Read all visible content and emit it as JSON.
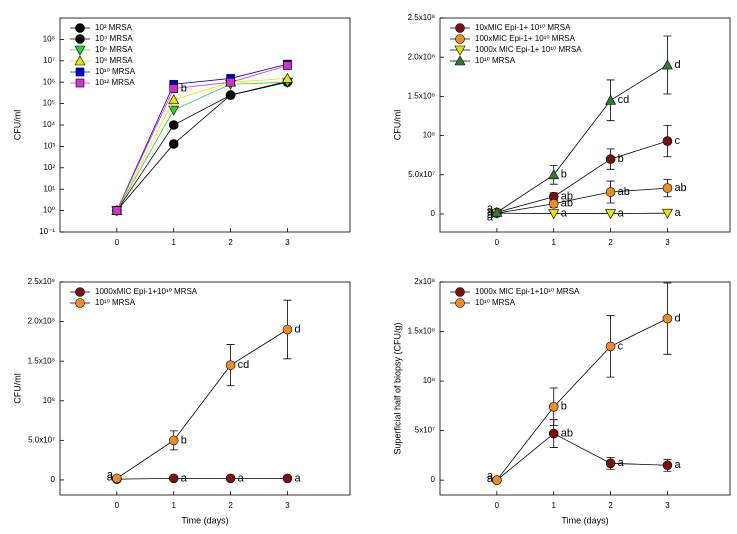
{
  "chart_data": [
    {
      "type": "line",
      "yscale": "log",
      "ylabel": "CFU/ml",
      "legend": "upper left",
      "x": [
        0,
        1,
        2,
        3
      ],
      "xlim": [
        -1,
        4.1
      ],
      "xticks": [
        0,
        1,
        2,
        3
      ],
      "ylim": [
        0.1,
        1000000000
      ],
      "yticks": [
        {
          "value": 0.1,
          "label": "10⁻¹"
        },
        {
          "value": 1,
          "label": "10⁰"
        },
        {
          "value": 10,
          "label": "10¹"
        },
        {
          "value": 100,
          "label": "10²"
        },
        {
          "value": 1000,
          "label": "10³"
        },
        {
          "value": 10000,
          "label": "10⁴"
        },
        {
          "value": 100000,
          "label": "10⁵"
        },
        {
          "value": 1000000,
          "label": "10⁶"
        },
        {
          "value": 10000000,
          "label": "10⁷"
        },
        {
          "value": 100000000,
          "label": "10⁸"
        }
      ],
      "series": [
        {
          "name": "10² MRSA",
          "color": "#000000",
          "marker": "circle",
          "values": [
            1,
            1300,
            250000,
            1100000
          ]
        },
        {
          "name": "10⁴ MRSA",
          "color": "#000000",
          "marker": "circle",
          "values": [
            1,
            10000,
            250000,
            1000000
          ]
        },
        {
          "name": "10⁶ MRSA",
          "color": "#33cc33",
          "marker": "tri-down",
          "values": [
            1,
            50000,
            800000,
            1000000
          ]
        },
        {
          "name": "10⁸ MRSA",
          "color": "#e6e600",
          "marker": "tri-up",
          "values": [
            1,
            150000,
            1000000,
            1500000
          ]
        },
        {
          "name": "10¹⁰ MRSA",
          "color": "#0000cc",
          "marker": "square",
          "values": [
            1,
            800000,
            1500000,
            7000000
          ]
        },
        {
          "name": "10¹² MRSA",
          "color": "#cc33cc",
          "marker": "square",
          "values": [
            1,
            500000,
            1000000,
            6000000
          ],
          "annotations": [
            null,
            "b",
            null,
            null
          ]
        }
      ]
    },
    {
      "type": "line",
      "ylabel": "CFU/ml",
      "legend": "upper left",
      "x": [
        0,
        1,
        2,
        3
      ],
      "xlim": [
        -1,
        4.1
      ],
      "xticks": [
        0,
        1,
        2,
        3
      ],
      "ylim": [
        -23000000,
        250000000
      ],
      "yticks": [
        0,
        {
          "value": 50000000,
          "label": "5.0x10⁷"
        },
        {
          "value": 100000000,
          "label": "10⁸"
        },
        {
          "value": 150000000,
          "label": "1.5x10⁸"
        },
        {
          "value": 200000000,
          "label": "2.0x10⁸"
        },
        {
          "value": 250000000,
          "label": "2.5x10⁸"
        }
      ],
      "series": [
        {
          "name": "10xMIC Epi-1+ 10¹⁰ MRSA",
          "color": "#7b1010",
          "marker": "circle",
          "values": [
            2000000,
            22000000,
            70000000,
            93000000
          ],
          "errors": [
            0,
            5000000,
            13000000,
            20000000
          ],
          "annotations": [
            "a",
            "ab",
            "b",
            "c"
          ]
        },
        {
          "name": "100xMIC Epi-1+ 10¹⁰ MRSA",
          "color": "#f08c28",
          "marker": "circle",
          "values": [
            1000000,
            13000000,
            28000000,
            33000000
          ],
          "errors": [
            0,
            5000000,
            14000000,
            11000000
          ],
          "annotations": [
            "a",
            "ab",
            "ab",
            "ab"
          ]
        },
        {
          "name": "1000x MIC Epi-1+ 10¹⁰ MRSA",
          "color": "#e6e600",
          "marker": "tri-down",
          "values": [
            1000000,
            500000,
            500000,
            1000000
          ],
          "annotations": [
            "a",
            "a",
            "a",
            "a"
          ]
        },
        {
          "name": "10¹⁰ MRSA",
          "color": "#2e7d32",
          "marker": "tri-up",
          "values": [
            2000000,
            50000000,
            145000000,
            190000000
          ],
          "errors": [
            0,
            12000000,
            26000000,
            37000000
          ],
          "annotations": [
            "a",
            "b",
            "cd",
            "d"
          ]
        }
      ]
    },
    {
      "type": "line",
      "ylabel": "CFU/ml",
      "xlabel": "Time (days)",
      "legend": "upper left",
      "x": [
        0,
        1,
        2,
        3
      ],
      "xlim": [
        -1,
        4.1
      ],
      "xticks": [
        0,
        1,
        2,
        3
      ],
      "ylim": [
        -19000000,
        250000000
      ],
      "yticks": [
        0,
        {
          "value": 50000000,
          "label": "5.0x10⁷"
        },
        {
          "value": 100000000,
          "label": "10⁸"
        },
        {
          "value": 150000000,
          "label": "1.5x10⁸"
        },
        {
          "value": 200000000,
          "label": "2.0x10⁸"
        },
        {
          "value": 250000000,
          "label": "2.5x10⁸"
        }
      ],
      "series": [
        {
          "name": "1000xMIC Epi-1+10¹⁰ MRSA",
          "color": "#7b1010",
          "marker": "circle",
          "values": [
            1000000,
            2000000,
            2000000,
            2000000
          ],
          "annotations": [
            "a",
            "a",
            "a",
            "a"
          ]
        },
        {
          "name": "10¹⁰ MRSA",
          "color": "#f08c28",
          "marker": "circle",
          "values": [
            2000000,
            50000000,
            145000000,
            190000000
          ],
          "errors": [
            0,
            12000000,
            26000000,
            37000000
          ],
          "annotations": [
            "a",
            "b",
            "cd",
            "d"
          ]
        }
      ]
    },
    {
      "type": "line",
      "ylabel": "Superficial half of biopsy (CFU/g)",
      "xlabel": "Time (days)",
      "legend": "upper left",
      "x": [
        0,
        1,
        2,
        3
      ],
      "xlim": [
        -1,
        4.1
      ],
      "xticks": [
        0,
        1,
        2,
        3
      ],
      "ylim": [
        -15000000,
        200000000
      ],
      "yticks": [
        0,
        {
          "value": 50000000,
          "label": "5x10⁷"
        },
        {
          "value": 100000000,
          "label": "10⁸"
        },
        {
          "value": 150000000,
          "label": "1.5x10⁸"
        },
        {
          "value": 200000000,
          "label": "2x10⁸"
        }
      ],
      "series": [
        {
          "name": "1000x MIC Epi-1+10¹⁰ MRSA",
          "color": "#7b1010",
          "marker": "circle",
          "values": [
            0,
            47000000,
            17000000,
            15000000
          ],
          "errors": [
            0,
            14000000,
            6000000,
            6000000
          ],
          "annotations": [
            "a",
            "ab",
            "a",
            "a"
          ]
        },
        {
          "name": "10¹⁰ MRSA",
          "color": "#f08c28",
          "marker": "circle",
          "values": [
            0,
            74000000,
            135000000,
            163000000
          ],
          "errors": [
            0,
            19000000,
            31000000,
            36000000
          ],
          "annotations": [
            "a",
            "b",
            "c",
            "d"
          ]
        }
      ]
    }
  ]
}
